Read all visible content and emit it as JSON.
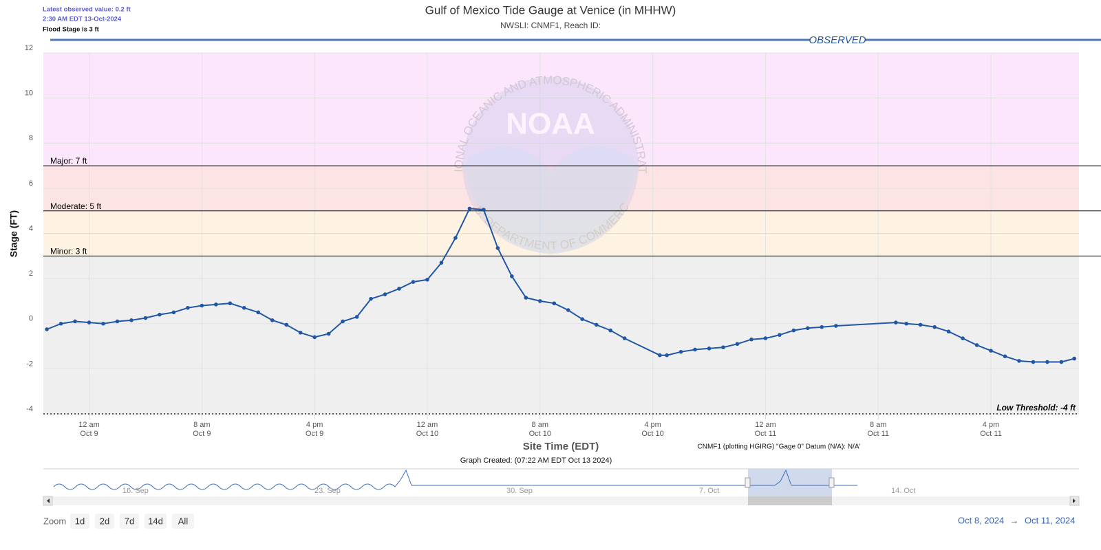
{
  "chart_data": {
    "type": "line",
    "title": "Gulf of Mexico Tide Gauge at Venice (in MHHW)",
    "subtitle": "NWSLI: CNMF1, Reach ID:",
    "info": [
      "Latest observed value: 0.2 ft",
      "2:30 AM EDT 13-Oct-2024",
      "Flood Stage is 3 ft"
    ],
    "ylabel": "Stage (FT)",
    "xlabel": "Site Time (EDT)",
    "datum_note": "CNMF1 (plotting HGIRG) \"Gage 0\" Datum (N/A): N/A'",
    "created_note": "Graph Created: (07:22 AM EDT Oct 13 2024)",
    "watermark": {
      "ring_top": "NATIONAL OCEANIC AND ATMOSPHERIC ADMINISTRATION",
      "logo": "NOAA",
      "ring_bottom": "U.S. DEPARTMENT OF COMMERCE"
    },
    "ylim": [
      -4,
      12
    ],
    "yticks": [
      -4,
      -2,
      0,
      2,
      4,
      6,
      8,
      10,
      12
    ],
    "xlim": [
      "2024-10-08T20:45",
      "2024-10-11T22:15"
    ],
    "xticks": [
      {
        "value": "2024-10-09T00:00",
        "label": "12 am",
        "sublabel": "Oct 9"
      },
      {
        "value": "2024-10-09T08:00",
        "label": "8 am",
        "sublabel": "Oct 9"
      },
      {
        "value": "2024-10-09T16:00",
        "label": "4 pm",
        "sublabel": "Oct 9"
      },
      {
        "value": "2024-10-10T00:00",
        "label": "12 am",
        "sublabel": "Oct 10"
      },
      {
        "value": "2024-10-10T08:00",
        "label": "8 am",
        "sublabel": "Oct 10"
      },
      {
        "value": "2024-10-10T16:00",
        "label": "4 pm",
        "sublabel": "Oct 10"
      },
      {
        "value": "2024-10-11T00:00",
        "label": "12 am",
        "sublabel": "Oct 11"
      },
      {
        "value": "2024-10-11T08:00",
        "label": "8 am",
        "sublabel": "Oct 11"
      },
      {
        "value": "2024-10-11T16:00",
        "label": "4 pm",
        "sublabel": "Oct 11"
      }
    ],
    "grid": true,
    "thresholds": [
      {
        "label": "Minor: 3 ft",
        "value": 3,
        "color": "#fef2e2"
      },
      {
        "label": "Moderate: 5 ft",
        "value": 5,
        "color": "#fde4e4"
      },
      {
        "label": "Major: 7 ft",
        "value": 7,
        "color": "#fbe6fb"
      }
    ],
    "low_threshold": {
      "label": "Low Threshold: -4 ft",
      "value": -4
    },
    "x": [
      "2024-10-08T21:00",
      "2024-10-08T22:00",
      "2024-10-08T23:00",
      "2024-10-09T00:00",
      "2024-10-09T01:00",
      "2024-10-09T02:00",
      "2024-10-09T03:00",
      "2024-10-09T04:00",
      "2024-10-09T05:00",
      "2024-10-09T06:00",
      "2024-10-09T07:00",
      "2024-10-09T08:00",
      "2024-10-09T09:00",
      "2024-10-09T10:00",
      "2024-10-09T11:00",
      "2024-10-09T12:00",
      "2024-10-09T13:00",
      "2024-10-09T14:00",
      "2024-10-09T15:00",
      "2024-10-09T16:00",
      "2024-10-09T17:00",
      "2024-10-09T18:00",
      "2024-10-09T19:00",
      "2024-10-09T20:00",
      "2024-10-09T21:00",
      "2024-10-09T22:00",
      "2024-10-09T23:00",
      "2024-10-10T00:00",
      "2024-10-10T01:00",
      "2024-10-10T02:00",
      "2024-10-10T03:00",
      "2024-10-10T04:00",
      "2024-10-10T05:00",
      "2024-10-10T06:00",
      "2024-10-10T07:00",
      "2024-10-10T08:00",
      "2024-10-10T09:00",
      "2024-10-10T10:00",
      "2024-10-10T11:00",
      "2024-10-10T12:00",
      "2024-10-10T13:00",
      "2024-10-10T14:00",
      "2024-10-10T16:30",
      "2024-10-10T17:00",
      "2024-10-10T18:00",
      "2024-10-10T19:00",
      "2024-10-10T20:00",
      "2024-10-10T21:00",
      "2024-10-10T22:00",
      "2024-10-10T23:00",
      "2024-10-11T00:00",
      "2024-10-11T01:00",
      "2024-10-11T02:00",
      "2024-10-11T03:00",
      "2024-10-11T04:00",
      "2024-10-11T05:00",
      "2024-10-11T09:15",
      "2024-10-11T10:00",
      "2024-10-11T11:00",
      "2024-10-11T12:00",
      "2024-10-11T13:00",
      "2024-10-11T14:00",
      "2024-10-11T15:00",
      "2024-10-11T16:00",
      "2024-10-11T17:00",
      "2024-10-11T18:00",
      "2024-10-11T19:00",
      "2024-10-11T20:00",
      "2024-10-11T21:00",
      "2024-10-11T21:55"
    ],
    "series": [
      {
        "name": "OBSERVED",
        "color": "#2156a5",
        "values": [
          -0.25,
          0.0,
          0.1,
          0.05,
          0.0,
          0.1,
          0.15,
          0.25,
          0.4,
          0.5,
          0.7,
          0.8,
          0.85,
          0.9,
          0.7,
          0.5,
          0.15,
          -0.05,
          -0.4,
          -0.6,
          -0.45,
          0.1,
          0.3,
          1.1,
          1.3,
          1.55,
          1.85,
          1.95,
          2.7,
          3.8,
          5.1,
          5.05,
          3.35,
          2.1,
          1.15,
          1.0,
          0.9,
          0.6,
          0.2,
          -0.05,
          -0.3,
          -0.65,
          -1.4,
          -1.4,
          -1.25,
          -1.15,
          -1.1,
          -1.05,
          -0.9,
          -0.7,
          -0.65,
          -0.5,
          -0.3,
          -0.2,
          -0.15,
          -0.1,
          0.05,
          0.0,
          -0.05,
          -0.15,
          -0.35,
          -0.65,
          -0.95,
          -1.2,
          -1.45,
          -1.65,
          -1.7,
          -1.7,
          -1.7,
          -1.55
        ]
      }
    ],
    "navigator_labels": [
      "16. Sep",
      "23. Sep",
      "30. Sep",
      "7. Oct",
      "14. Oct"
    ],
    "zoom": {
      "label": "Zoom",
      "buttons": [
        "1d",
        "2d",
        "7d",
        "14d",
        "All"
      ]
    },
    "range": {
      "from": "Oct 8, 2024",
      "arrow": "→",
      "to": "Oct 11, 2024"
    }
  }
}
